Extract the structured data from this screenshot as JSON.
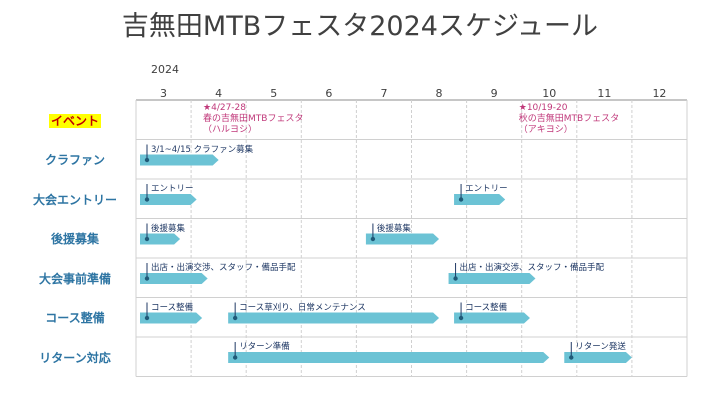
{
  "title": "吉無田MTBフェスタ2024スケジュール",
  "year": "2024",
  "months": [
    "3",
    "4",
    "5",
    "6",
    "7",
    "8",
    "9",
    "10",
    "11",
    "12"
  ],
  "colors": {
    "bar": "#6cc3d5",
    "grid": "#d0d0d0",
    "label": "#2e75a3",
    "event": "#c0387a"
  },
  "rows": [
    {
      "label": "イベント",
      "highlight": true
    },
    {
      "label": "クラファン"
    },
    {
      "label": "大会エントリー"
    },
    {
      "label": "後援募集"
    },
    {
      "label": "大会事前準備"
    },
    {
      "label": "コース整備"
    },
    {
      "label": "リターン対応"
    }
  ],
  "events": [
    {
      "text": "★4/27-28\n春の吉無田MTBフェスタ\n（ハルヨシ）",
      "month": 4.87
    },
    {
      "text": "★10/19-20\n秋の吉無田MTBフェスタ\n（アキヨシ）",
      "month": 10.6
    }
  ],
  "tasks": [
    {
      "row": 1,
      "start": 3.0,
      "end": 4.5,
      "label": "3/1~4/15 クラファン募集"
    },
    {
      "row": 2,
      "start": 3.0,
      "end": 4.1,
      "label": "エントリー"
    },
    {
      "row": 2,
      "start": 8.7,
      "end": 9.7,
      "label": "エントリー"
    },
    {
      "row": 3,
      "start": 3.0,
      "end": 3.8,
      "label": "後援募集"
    },
    {
      "row": 3,
      "start": 7.1,
      "end": 8.5,
      "label": "後援募集"
    },
    {
      "row": 4,
      "start": 3.0,
      "end": 4.3,
      "label": "出店・出演交渉、スタッフ・備品手配"
    },
    {
      "row": 4,
      "start": 8.6,
      "end": 10.25,
      "label": "出店・出演交渉、スタッフ・備品手配"
    },
    {
      "row": 5,
      "start": 3.0,
      "end": 4.2,
      "label": "コース整備"
    },
    {
      "row": 5,
      "start": 4.6,
      "end": 8.5,
      "label": "コース草刈り、日常メンテナンス"
    },
    {
      "row": 5,
      "start": 8.7,
      "end": 10.15,
      "label": "コース整備"
    },
    {
      "row": 6,
      "start": 4.6,
      "end": 10.5,
      "label": "リターン準備"
    },
    {
      "row": 6,
      "start": 10.7,
      "end": 12.0,
      "label": "リターン発送"
    }
  ]
}
